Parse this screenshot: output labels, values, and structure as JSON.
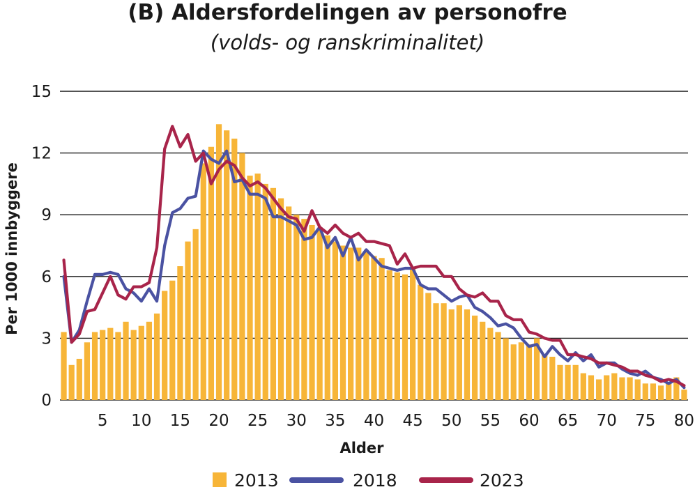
{
  "chart_data": {
    "type": "bar",
    "title": "(B) Aldersfordelingen av personofre",
    "subtitle": "(volds- og ranskriminalitet)",
    "xlabel": "Alder",
    "ylabel": "Per 1000 innbyggere",
    "ylim": [
      0,
      15
    ],
    "yticks": [
      0,
      3,
      6,
      9,
      12,
      15
    ],
    "xticks": [
      5,
      10,
      15,
      20,
      25,
      30,
      35,
      40,
      45,
      50,
      55,
      60,
      65,
      70,
      75,
      80
    ],
    "grid": "horizontal",
    "legend_placement": "bottom",
    "x": [
      0,
      1,
      2,
      3,
      4,
      5,
      6,
      7,
      8,
      9,
      10,
      11,
      12,
      13,
      14,
      15,
      16,
      17,
      18,
      19,
      20,
      21,
      22,
      23,
      24,
      25,
      26,
      27,
      28,
      29,
      30,
      31,
      32,
      33,
      34,
      35,
      36,
      37,
      38,
      39,
      40,
      41,
      42,
      43,
      44,
      45,
      46,
      47,
      48,
      49,
      50,
      51,
      52,
      53,
      54,
      55,
      56,
      57,
      58,
      59,
      60,
      61,
      62,
      63,
      64,
      65,
      66,
      67,
      68,
      69,
      70,
      71,
      72,
      73,
      74,
      75,
      76,
      77,
      78,
      79,
      80
    ],
    "series": [
      {
        "name": "2013",
        "kind": "bar",
        "color": "#f7b538",
        "values": [
          3.3,
          1.7,
          2.0,
          2.8,
          3.3,
          3.4,
          3.5,
          3.3,
          3.8,
          3.4,
          3.6,
          3.8,
          4.2,
          5.3,
          5.8,
          6.5,
          7.7,
          8.3,
          11.5,
          12.3,
          13.4,
          13.1,
          12.7,
          12.0,
          10.9,
          11.0,
          10.5,
          10.3,
          9.8,
          9.4,
          9.0,
          8.8,
          8.5,
          8.3,
          8.0,
          7.7,
          7.5,
          7.4,
          7.4,
          7.2,
          7.0,
          6.9,
          6.3,
          6.2,
          6.1,
          6.4,
          5.6,
          5.2,
          4.7,
          4.7,
          4.4,
          4.6,
          4.4,
          4.1,
          3.8,
          3.5,
          3.3,
          3.0,
          2.7,
          2.8,
          2.7,
          3.0,
          2.2,
          2.1,
          1.7,
          1.7,
          1.7,
          1.3,
          1.2,
          1.0,
          1.2,
          1.3,
          1.1,
          1.1,
          1.0,
          0.8,
          0.8,
          0.7,
          0.8,
          1.1,
          0.5
        ]
      },
      {
        "name": "2018",
        "kind": "line",
        "color": "#4a52a2",
        "values": [
          6.0,
          2.8,
          3.4,
          4.8,
          6.1,
          6.1,
          6.2,
          6.1,
          5.4,
          5.2,
          4.8,
          5.4,
          4.8,
          7.5,
          9.1,
          9.3,
          9.8,
          9.9,
          12.1,
          11.7,
          11.5,
          12.1,
          10.6,
          10.7,
          10.0,
          10.0,
          9.8,
          8.9,
          8.9,
          8.7,
          8.5,
          7.8,
          7.9,
          8.4,
          7.4,
          7.9,
          7.0,
          7.9,
          6.8,
          7.3,
          6.9,
          6.5,
          6.4,
          6.3,
          6.4,
          6.4,
          5.6,
          5.4,
          5.4,
          5.1,
          4.8,
          5.0,
          5.1,
          4.5,
          4.3,
          4.0,
          3.6,
          3.7,
          3.5,
          3.0,
          2.6,
          2.7,
          2.1,
          2.6,
          2.2,
          1.9,
          2.3,
          1.9,
          2.2,
          1.6,
          1.8,
          1.8,
          1.5,
          1.3,
          1.2,
          1.4,
          1.1,
          1.0,
          0.8,
          1.0,
          0.6
        ]
      },
      {
        "name": "2023",
        "kind": "line",
        "color": "#a8244a",
        "values": [
          6.8,
          2.8,
          3.2,
          4.3,
          4.4,
          5.2,
          6.0,
          5.1,
          4.9,
          5.5,
          5.5,
          5.7,
          7.4,
          12.2,
          13.3,
          12.3,
          12.9,
          11.6,
          12.0,
          10.5,
          11.2,
          11.6,
          11.4,
          10.8,
          10.4,
          10.6,
          10.3,
          9.8,
          9.3,
          8.9,
          8.8,
          8.2,
          9.2,
          8.4,
          8.1,
          8.5,
          8.1,
          7.9,
          8.1,
          7.7,
          7.7,
          7.6,
          7.5,
          6.6,
          7.1,
          6.4,
          6.5,
          6.5,
          6.5,
          6.0,
          6.0,
          5.4,
          5.1,
          5.0,
          5.2,
          4.8,
          4.8,
          4.1,
          3.9,
          3.9,
          3.3,
          3.2,
          3.0,
          2.9,
          2.9,
          2.2,
          2.2,
          2.1,
          2.0,
          1.8,
          1.8,
          1.7,
          1.6,
          1.4,
          1.4,
          1.2,
          1.1,
          0.9,
          1.0,
          0.9,
          0.7
        ]
      }
    ]
  }
}
